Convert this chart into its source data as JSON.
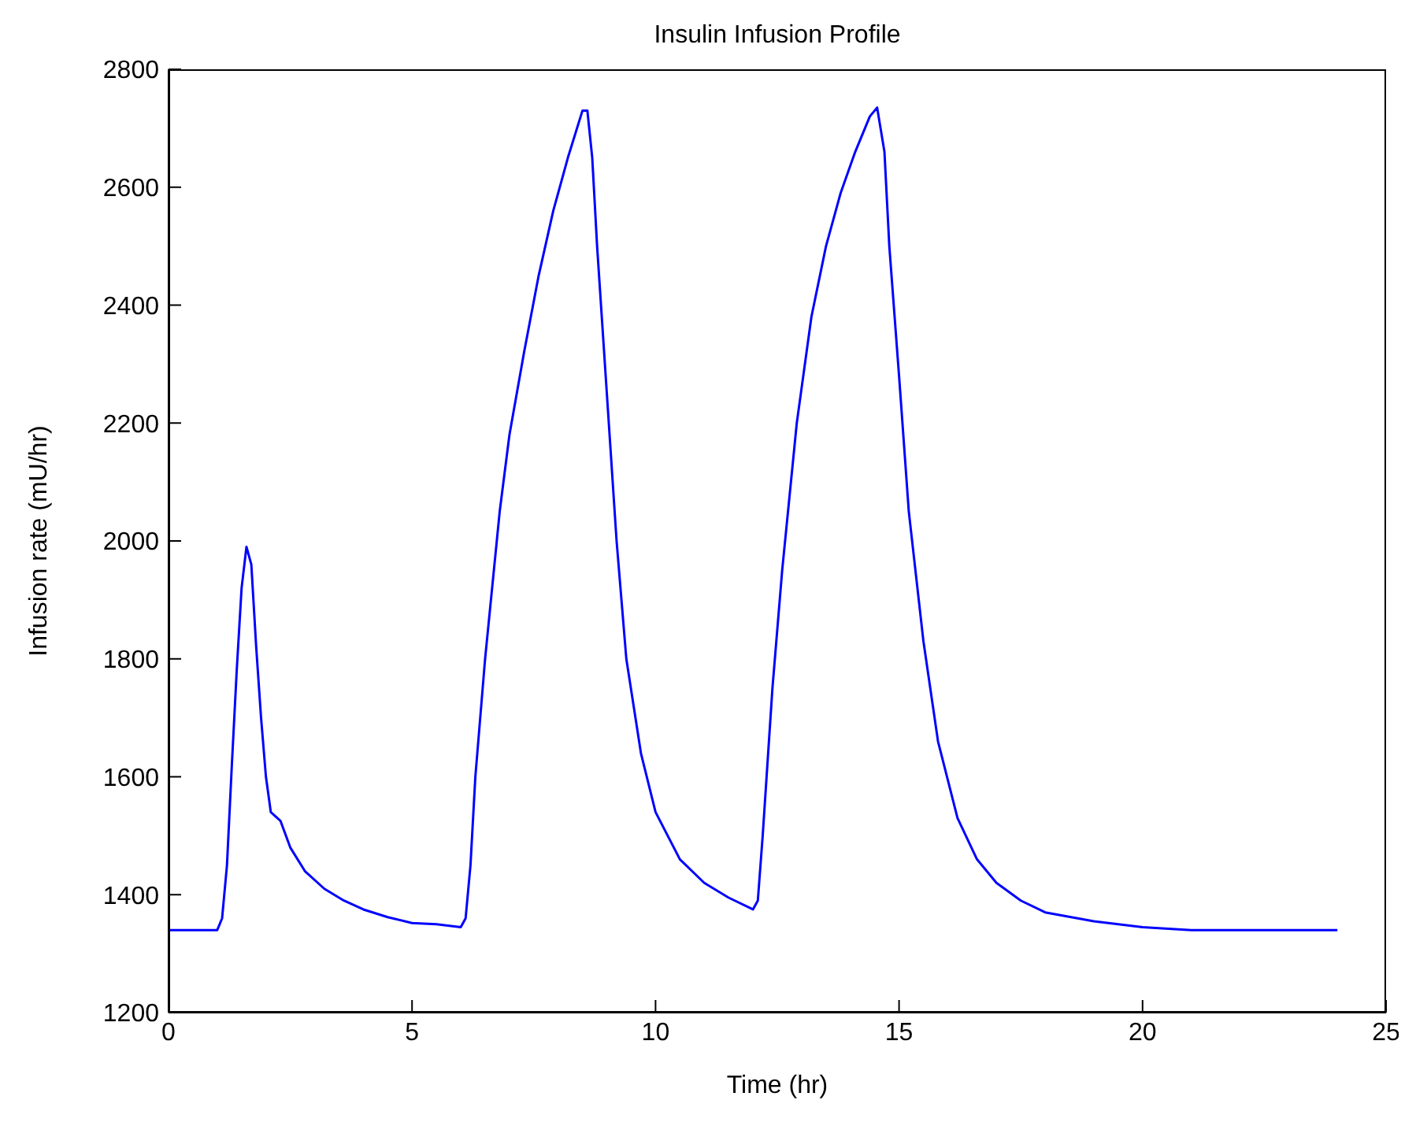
{
  "chart_data": {
    "type": "line",
    "title": "Insulin Infusion Profile",
    "xlabel": "Time (hr)",
    "ylabel": "Infusion rate (mU/hr)",
    "x": [
      0,
      1.0,
      1.1,
      1.2,
      1.3,
      1.4,
      1.5,
      1.6,
      1.7,
      1.8,
      1.9,
      2.0,
      2.1,
      2.3,
      2.5,
      2.8,
      3.2,
      3.6,
      4.0,
      4.5,
      5.0,
      5.5,
      5.8,
      6.0,
      6.1,
      6.2,
      6.3,
      6.5,
      6.8,
      7.0,
      7.3,
      7.6,
      7.9,
      8.2,
      8.5,
      8.6,
      8.7,
      8.8,
      9.0,
      9.2,
      9.4,
      9.7,
      10.0,
      10.5,
      11.0,
      11.5,
      12.0,
      12.1,
      12.2,
      12.4,
      12.6,
      12.9,
      13.2,
      13.5,
      13.8,
      14.1,
      14.4,
      14.55,
      14.7,
      14.8,
      15.0,
      15.2,
      15.5,
      15.8,
      16.2,
      16.6,
      17.0,
      17.5,
      18.0,
      19.0,
      20.0,
      21.0,
      24.0
    ],
    "series": [
      {
        "color": "#0000ff",
        "values": [
          1340,
          1340,
          1360,
          1450,
          1620,
          1780,
          1920,
          1990,
          1960,
          1820,
          1700,
          1600,
          1540,
          1525,
          1480,
          1440,
          1410,
          1390,
          1375,
          1362,
          1352,
          1350,
          1347,
          1345,
          1360,
          1450,
          1600,
          1800,
          2050,
          2180,
          2320,
          2450,
          2560,
          2650,
          2730,
          2730,
          2650,
          2500,
          2250,
          2000,
          1800,
          1640,
          1540,
          1460,
          1420,
          1395,
          1375,
          1390,
          1500,
          1750,
          1950,
          2200,
          2380,
          2500,
          2590,
          2660,
          2720,
          2735,
          2660,
          2500,
          2280,
          2050,
          1830,
          1660,
          1530,
          1460,
          1420,
          1390,
          1370,
          1355,
          1345,
          1340,
          1340
        ]
      }
    ],
    "xlim": [
      0,
      25
    ],
    "xticks": [
      0,
      5,
      10,
      15,
      20,
      25
    ],
    "ylim": [
      1200,
      2800
    ],
    "yticks": [
      1200,
      1400,
      1600,
      1800,
      2000,
      2200,
      2400,
      2600,
      2800
    ],
    "grid": false,
    "legend": false,
    "marker": "none",
    "line_style": "solid"
  }
}
